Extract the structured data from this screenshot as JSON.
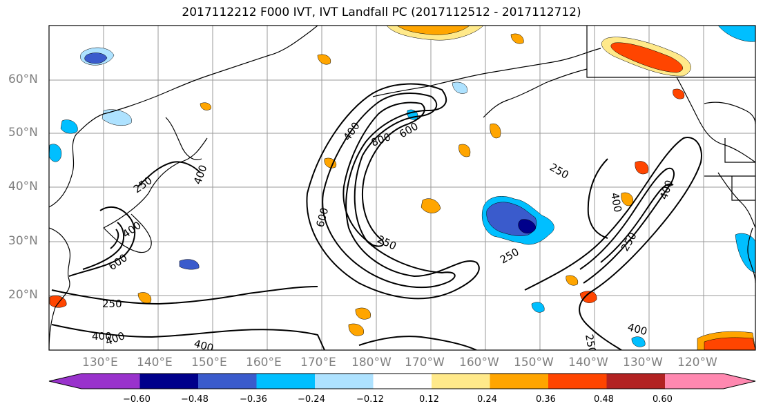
{
  "title": "2017112212 F000 IVT, IVT Landfall PC (2017112512 - 2017112712)",
  "lat_labels": [
    "60°N",
    "50°N",
    "40°N",
    "30°N",
    "20°N"
  ],
  "lon_labels": [
    "130°E",
    "140°E",
    "150°E",
    "160°E",
    "170°E",
    "180°W",
    "170°W",
    "160°W",
    "150°W",
    "140°W",
    "130°W",
    "120°W"
  ],
  "contour_labels": [
    "250",
    "400",
    "600",
    "800",
    "600",
    "400",
    "400",
    "600",
    "250",
    "250",
    "250",
    "250",
    "400",
    "400",
    "250",
    "400",
    "400",
    "400",
    "250",
    "400"
  ],
  "colorbar": {
    "tick_labels": [
      "−0.60",
      "−0.48",
      "−0.36",
      "−0.24",
      "−0.12",
      "0.12",
      "0.24",
      "0.36",
      "0.48",
      "0.60"
    ],
    "colors": [
      "#9932cc",
      "#00008b",
      "#3a5bcc",
      "#00bfff",
      "#aee2ff",
      "#ffffff",
      "#ffe98a",
      "#ffa500",
      "#ff4500",
      "#b22222",
      "#ff88b0"
    ]
  },
  "map_extent": {
    "lon_min": 120,
    "lon_max": 245,
    "lat_min": 10,
    "lat_max": 70
  }
}
